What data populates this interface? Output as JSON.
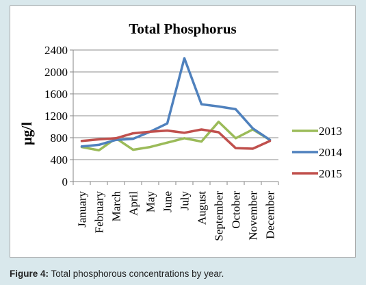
{
  "caption": {
    "label": "Figure 4:",
    "text": " Total phosphorous concentrations by year."
  },
  "chart_data": {
    "type": "line",
    "title": "Total Phosphorus",
    "xlabel": "",
    "ylabel": "μg/l",
    "ylim": [
      0,
      2400
    ],
    "yticks": [
      0,
      400,
      800,
      1200,
      1600,
      2000,
      2400
    ],
    "grid": true,
    "legend": "right",
    "categories": [
      "January",
      "February",
      "March",
      "April",
      "May",
      "June",
      "July",
      "August",
      "September",
      "October",
      "November",
      "December"
    ],
    "series": [
      {
        "name": "2013",
        "color": "#9bbb59",
        "values": [
          630,
          570,
          790,
          580,
          630,
          710,
          790,
          730,
          1090,
          790,
          950,
          760
        ]
      },
      {
        "name": "2014",
        "color": "#4f81bd",
        "values": [
          640,
          670,
          760,
          780,
          910,
          1060,
          2250,
          1410,
          1370,
          1320,
          970,
          760
        ]
      },
      {
        "name": "2015",
        "color": "#c0504d",
        "values": [
          740,
          770,
          790,
          880,
          910,
          930,
          890,
          950,
          900,
          610,
          600,
          740
        ]
      }
    ]
  }
}
